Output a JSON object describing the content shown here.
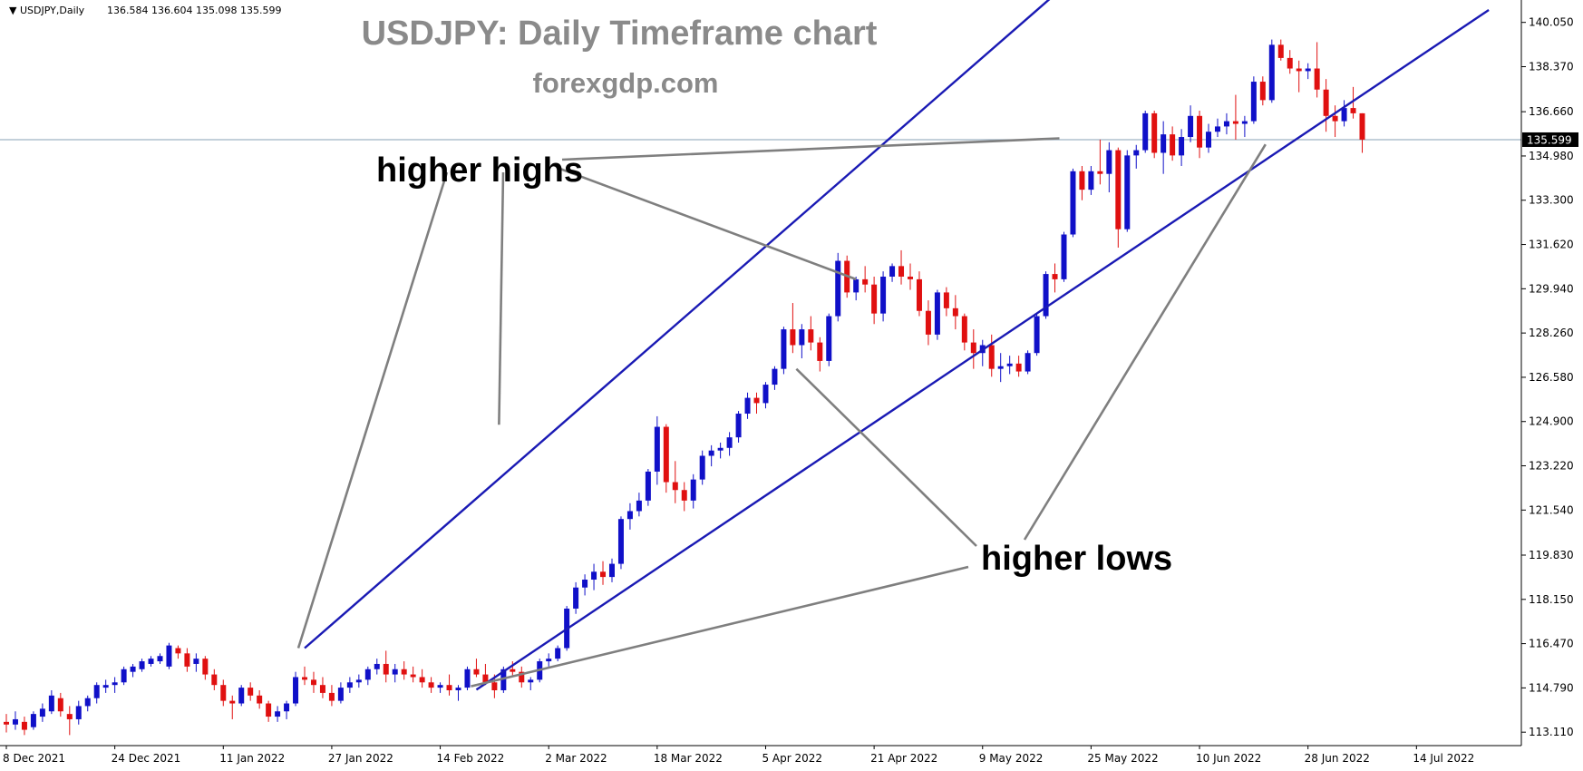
{
  "header": {
    "symbol": "USDJPY,Daily",
    "ohlc": "136.584 136.604 135.098 135.599"
  },
  "title": "USDJPY: Daily Timeframe chart",
  "subtitle": "forexgdp.com",
  "annotations": {
    "higher_highs": "higher highs",
    "higher_lows": "higher lows"
  },
  "colors": {
    "bull": "#1010c8",
    "bear": "#e01010",
    "channel": "#1a1ab4",
    "pointer": "#7f7f7f",
    "current_price_line": "#9fb3c4",
    "price_label_bg": "#000000"
  },
  "chart_data": {
    "type": "candlestick",
    "y_axis": {
      "ticks": [
        "140.050",
        "138.370",
        "136.660",
        "134.980",
        "133.300",
        "131.620",
        "129.940",
        "128.260",
        "126.580",
        "124.900",
        "123.220",
        "121.540",
        "119.830",
        "118.150",
        "116.470",
        "114.790",
        "113.110"
      ],
      "range": [
        112.6,
        140.9
      ]
    },
    "x_axis": {
      "ticks": [
        "8 Dec 2021",
        "24 Dec 2021",
        "11 Jan 2022",
        "27 Jan 2022",
        "14 Feb 2022",
        "2 Mar 2022",
        "18 Mar 2022",
        "5 Apr 2022",
        "21 Apr 2022",
        "9 May 2022",
        "25 May 2022",
        "10 Jun 2022",
        "28 Jun 2022",
        "14 Jul 2022"
      ],
      "tick_bar_index": [
        0,
        12,
        24,
        36,
        48,
        60,
        72,
        84,
        96,
        108,
        120,
        132,
        144,
        156
      ]
    },
    "current_price": 135.599,
    "candles": [
      {
        "o": 113.5,
        "h": 113.8,
        "l": 113.1,
        "c": 113.4
      },
      {
        "o": 113.4,
        "h": 113.9,
        "l": 113.2,
        "c": 113.6
      },
      {
        "o": 113.5,
        "h": 113.7,
        "l": 113.0,
        "c": 113.2
      },
      {
        "o": 113.3,
        "h": 113.9,
        "l": 113.2,
        "c": 113.8
      },
      {
        "o": 113.7,
        "h": 114.2,
        "l": 113.5,
        "c": 114.0
      },
      {
        "o": 113.9,
        "h": 114.7,
        "l": 113.8,
        "c": 114.5
      },
      {
        "o": 114.4,
        "h": 114.6,
        "l": 113.7,
        "c": 113.9
      },
      {
        "o": 113.8,
        "h": 114.1,
        "l": 113.0,
        "c": 113.6
      },
      {
        "o": 113.6,
        "h": 114.3,
        "l": 113.4,
        "c": 114.1
      },
      {
        "o": 114.1,
        "h": 114.5,
        "l": 113.9,
        "c": 114.4
      },
      {
        "o": 114.4,
        "h": 115.0,
        "l": 114.2,
        "c": 114.9
      },
      {
        "o": 114.8,
        "h": 115.1,
        "l": 114.6,
        "c": 114.9
      },
      {
        "o": 114.9,
        "h": 115.2,
        "l": 114.6,
        "c": 115.0
      },
      {
        "o": 115.0,
        "h": 115.6,
        "l": 114.9,
        "c": 115.5
      },
      {
        "o": 115.4,
        "h": 115.7,
        "l": 115.2,
        "c": 115.6
      },
      {
        "o": 115.5,
        "h": 115.9,
        "l": 115.4,
        "c": 115.8
      },
      {
        "o": 115.7,
        "h": 116.0,
        "l": 115.6,
        "c": 115.9
      },
      {
        "o": 115.8,
        "h": 116.1,
        "l": 115.7,
        "c": 116.0
      },
      {
        "o": 115.6,
        "h": 116.5,
        "l": 115.5,
        "c": 116.4
      },
      {
        "o": 116.3,
        "h": 116.4,
        "l": 115.9,
        "c": 116.1
      },
      {
        "o": 116.1,
        "h": 116.3,
        "l": 115.4,
        "c": 115.6
      },
      {
        "o": 115.7,
        "h": 116.1,
        "l": 115.4,
        "c": 115.9
      },
      {
        "o": 115.9,
        "h": 116.0,
        "l": 115.1,
        "c": 115.3
      },
      {
        "o": 115.3,
        "h": 115.5,
        "l": 114.7,
        "c": 114.9
      },
      {
        "o": 114.9,
        "h": 115.1,
        "l": 114.1,
        "c": 114.3
      },
      {
        "o": 114.3,
        "h": 114.5,
        "l": 113.6,
        "c": 114.2
      },
      {
        "o": 114.2,
        "h": 114.9,
        "l": 114.1,
        "c": 114.8
      },
      {
        "o": 114.8,
        "h": 115.0,
        "l": 114.3,
        "c": 114.5
      },
      {
        "o": 114.5,
        "h": 114.7,
        "l": 114.0,
        "c": 114.2
      },
      {
        "o": 114.2,
        "h": 114.3,
        "l": 113.5,
        "c": 113.7
      },
      {
        "o": 113.7,
        "h": 114.1,
        "l": 113.5,
        "c": 113.9
      },
      {
        "o": 113.9,
        "h": 114.3,
        "l": 113.6,
        "c": 114.2
      },
      {
        "o": 114.2,
        "h": 115.4,
        "l": 114.1,
        "c": 115.2
      },
      {
        "o": 115.2,
        "h": 115.6,
        "l": 114.9,
        "c": 115.1
      },
      {
        "o": 115.1,
        "h": 115.4,
        "l": 114.6,
        "c": 114.9
      },
      {
        "o": 114.9,
        "h": 115.2,
        "l": 114.4,
        "c": 114.6
      },
      {
        "o": 114.6,
        "h": 114.9,
        "l": 114.1,
        "c": 114.3
      },
      {
        "o": 114.3,
        "h": 115.0,
        "l": 114.2,
        "c": 114.8
      },
      {
        "o": 114.8,
        "h": 115.2,
        "l": 114.6,
        "c": 115.0
      },
      {
        "o": 115.0,
        "h": 115.3,
        "l": 114.8,
        "c": 115.1
      },
      {
        "o": 115.1,
        "h": 115.6,
        "l": 114.9,
        "c": 115.5
      },
      {
        "o": 115.5,
        "h": 115.9,
        "l": 115.3,
        "c": 115.7
      },
      {
        "o": 115.7,
        "h": 116.2,
        "l": 115.0,
        "c": 115.3
      },
      {
        "o": 115.3,
        "h": 115.7,
        "l": 115.0,
        "c": 115.5
      },
      {
        "o": 115.5,
        "h": 115.8,
        "l": 115.1,
        "c": 115.3
      },
      {
        "o": 115.3,
        "h": 115.6,
        "l": 115.0,
        "c": 115.2
      },
      {
        "o": 115.2,
        "h": 115.5,
        "l": 114.8,
        "c": 115.0
      },
      {
        "o": 115.0,
        "h": 115.2,
        "l": 114.6,
        "c": 114.8
      },
      {
        "o": 114.8,
        "h": 115.0,
        "l": 114.6,
        "c": 114.9
      },
      {
        "o": 114.9,
        "h": 115.3,
        "l": 114.5,
        "c": 114.7
      },
      {
        "o": 114.7,
        "h": 114.9,
        "l": 114.3,
        "c": 114.8
      },
      {
        "o": 114.8,
        "h": 115.6,
        "l": 114.7,
        "c": 115.5
      },
      {
        "o": 115.5,
        "h": 115.9,
        "l": 115.2,
        "c": 115.3
      },
      {
        "o": 115.3,
        "h": 115.7,
        "l": 114.9,
        "c": 115.0
      },
      {
        "o": 115.0,
        "h": 115.3,
        "l": 114.4,
        "c": 114.7
      },
      {
        "o": 114.7,
        "h": 115.6,
        "l": 114.6,
        "c": 115.5
      },
      {
        "o": 115.5,
        "h": 115.8,
        "l": 115.2,
        "c": 115.4
      },
      {
        "o": 115.4,
        "h": 115.6,
        "l": 114.8,
        "c": 115.0
      },
      {
        "o": 115.0,
        "h": 115.2,
        "l": 114.7,
        "c": 115.1
      },
      {
        "o": 115.1,
        "h": 115.9,
        "l": 115.0,
        "c": 115.8
      },
      {
        "o": 115.8,
        "h": 116.1,
        "l": 115.6,
        "c": 115.9
      },
      {
        "o": 115.9,
        "h": 116.4,
        "l": 115.8,
        "c": 116.3
      },
      {
        "o": 116.3,
        "h": 117.9,
        "l": 116.2,
        "c": 117.8
      },
      {
        "o": 117.8,
        "h": 118.8,
        "l": 117.6,
        "c": 118.6
      },
      {
        "o": 118.6,
        "h": 119.1,
        "l": 118.3,
        "c": 118.9
      },
      {
        "o": 118.9,
        "h": 119.5,
        "l": 118.5,
        "c": 119.2
      },
      {
        "o": 119.2,
        "h": 119.6,
        "l": 118.7,
        "c": 119.0
      },
      {
        "o": 119.0,
        "h": 119.7,
        "l": 118.8,
        "c": 119.5
      },
      {
        "o": 119.5,
        "h": 121.3,
        "l": 119.3,
        "c": 121.2
      },
      {
        "o": 121.2,
        "h": 121.8,
        "l": 120.8,
        "c": 121.5
      },
      {
        "o": 121.5,
        "h": 122.2,
        "l": 121.3,
        "c": 121.9
      },
      {
        "o": 121.9,
        "h": 123.1,
        "l": 121.7,
        "c": 123.0
      },
      {
        "o": 123.0,
        "h": 125.1,
        "l": 122.5,
        "c": 124.7
      },
      {
        "o": 124.7,
        "h": 124.8,
        "l": 122.2,
        "c": 122.6
      },
      {
        "o": 122.6,
        "h": 123.4,
        "l": 121.8,
        "c": 122.3
      },
      {
        "o": 122.3,
        "h": 122.6,
        "l": 121.5,
        "c": 121.9
      },
      {
        "o": 121.9,
        "h": 122.9,
        "l": 121.6,
        "c": 122.7
      },
      {
        "o": 122.7,
        "h": 123.8,
        "l": 122.5,
        "c": 123.6
      },
      {
        "o": 123.6,
        "h": 124.0,
        "l": 123.2,
        "c": 123.8
      },
      {
        "o": 123.8,
        "h": 124.1,
        "l": 123.5,
        "c": 123.9
      },
      {
        "o": 123.9,
        "h": 124.5,
        "l": 123.6,
        "c": 124.3
      },
      {
        "o": 124.3,
        "h": 125.3,
        "l": 124.1,
        "c": 125.2
      },
      {
        "o": 125.2,
        "h": 126.0,
        "l": 125.0,
        "c": 125.8
      },
      {
        "o": 125.8,
        "h": 126.0,
        "l": 125.2,
        "c": 125.6
      },
      {
        "o": 125.6,
        "h": 126.4,
        "l": 125.4,
        "c": 126.3
      },
      {
        "o": 126.3,
        "h": 127.0,
        "l": 126.1,
        "c": 126.9
      },
      {
        "o": 126.9,
        "h": 128.5,
        "l": 126.7,
        "c": 128.4
      },
      {
        "o": 128.4,
        "h": 129.4,
        "l": 127.5,
        "c": 127.8
      },
      {
        "o": 127.8,
        "h": 128.6,
        "l": 127.3,
        "c": 128.4
      },
      {
        "o": 128.4,
        "h": 128.9,
        "l": 127.6,
        "c": 127.9
      },
      {
        "o": 127.9,
        "h": 128.1,
        "l": 126.8,
        "c": 127.2
      },
      {
        "o": 127.2,
        "h": 129.0,
        "l": 127.0,
        "c": 128.9
      },
      {
        "o": 128.9,
        "h": 131.3,
        "l": 128.7,
        "c": 131.0
      },
      {
        "o": 131.0,
        "h": 131.2,
        "l": 129.6,
        "c": 129.8
      },
      {
        "o": 129.8,
        "h": 130.4,
        "l": 129.5,
        "c": 130.3
      },
      {
        "o": 130.3,
        "h": 130.8,
        "l": 129.8,
        "c": 130.1
      },
      {
        "o": 130.1,
        "h": 130.4,
        "l": 128.6,
        "c": 129.0
      },
      {
        "o": 129.0,
        "h": 130.6,
        "l": 128.7,
        "c": 130.4
      },
      {
        "o": 130.4,
        "h": 130.9,
        "l": 130.2,
        "c": 130.8
      },
      {
        "o": 130.8,
        "h": 131.4,
        "l": 130.1,
        "c": 130.4
      },
      {
        "o": 130.4,
        "h": 130.9,
        "l": 129.9,
        "c": 130.3
      },
      {
        "o": 130.3,
        "h": 130.6,
        "l": 128.9,
        "c": 129.1
      },
      {
        "o": 129.1,
        "h": 129.5,
        "l": 127.8,
        "c": 128.2
      },
      {
        "o": 128.2,
        "h": 129.9,
        "l": 128.0,
        "c": 129.8
      },
      {
        "o": 129.8,
        "h": 130.0,
        "l": 128.9,
        "c": 129.2
      },
      {
        "o": 129.2,
        "h": 129.7,
        "l": 128.4,
        "c": 128.9
      },
      {
        "o": 128.9,
        "h": 129.0,
        "l": 127.6,
        "c": 127.9
      },
      {
        "o": 127.9,
        "h": 128.4,
        "l": 126.9,
        "c": 127.5
      },
      {
        "o": 127.5,
        "h": 128.0,
        "l": 127.0,
        "c": 127.8
      },
      {
        "o": 127.8,
        "h": 128.2,
        "l": 126.6,
        "c": 126.9
      },
      {
        "o": 126.9,
        "h": 127.5,
        "l": 126.4,
        "c": 127.0
      },
      {
        "o": 127.0,
        "h": 127.4,
        "l": 126.7,
        "c": 127.1
      },
      {
        "o": 127.1,
        "h": 127.4,
        "l": 126.6,
        "c": 126.8
      },
      {
        "o": 126.8,
        "h": 127.6,
        "l": 126.7,
        "c": 127.5
      },
      {
        "o": 127.5,
        "h": 129.0,
        "l": 127.4,
        "c": 128.9
      },
      {
        "o": 128.9,
        "h": 130.6,
        "l": 128.8,
        "c": 130.5
      },
      {
        "o": 130.5,
        "h": 130.9,
        "l": 129.8,
        "c": 130.3
      },
      {
        "o": 130.3,
        "h": 132.1,
        "l": 130.2,
        "c": 132.0
      },
      {
        "o": 132.0,
        "h": 134.5,
        "l": 131.9,
        "c": 134.4
      },
      {
        "o": 134.4,
        "h": 134.6,
        "l": 133.3,
        "c": 133.7
      },
      {
        "o": 133.7,
        "h": 134.6,
        "l": 133.5,
        "c": 134.4
      },
      {
        "o": 134.4,
        "h": 135.6,
        "l": 133.9,
        "c": 134.3
      },
      {
        "o": 134.3,
        "h": 135.5,
        "l": 133.6,
        "c": 135.2
      },
      {
        "o": 135.2,
        "h": 135.3,
        "l": 131.5,
        "c": 132.2
      },
      {
        "o": 132.2,
        "h": 135.2,
        "l": 132.1,
        "c": 135.0
      },
      {
        "o": 135.0,
        "h": 135.4,
        "l": 134.5,
        "c": 135.2
      },
      {
        "o": 135.2,
        "h": 136.7,
        "l": 135.1,
        "c": 136.6
      },
      {
        "o": 136.6,
        "h": 136.7,
        "l": 134.9,
        "c": 135.1
      },
      {
        "o": 135.1,
        "h": 136.3,
        "l": 134.3,
        "c": 135.8
      },
      {
        "o": 135.8,
        "h": 136.1,
        "l": 134.8,
        "c": 135.0
      },
      {
        "o": 135.0,
        "h": 136.0,
        "l": 134.6,
        "c": 135.7
      },
      {
        "o": 135.7,
        "h": 136.9,
        "l": 135.5,
        "c": 136.5
      },
      {
        "o": 136.5,
        "h": 136.7,
        "l": 134.9,
        "c": 135.3
      },
      {
        "o": 135.3,
        "h": 136.2,
        "l": 135.1,
        "c": 135.9
      },
      {
        "o": 135.9,
        "h": 136.4,
        "l": 135.7,
        "c": 136.1
      },
      {
        "o": 136.1,
        "h": 136.6,
        "l": 135.8,
        "c": 136.3
      },
      {
        "o": 136.3,
        "h": 137.3,
        "l": 135.6,
        "c": 136.2
      },
      {
        "o": 136.2,
        "h": 136.5,
        "l": 135.7,
        "c": 136.3
      },
      {
        "o": 136.3,
        "h": 138.0,
        "l": 136.2,
        "c": 137.8
      },
      {
        "o": 137.8,
        "h": 138.0,
        "l": 136.9,
        "c": 137.1
      },
      {
        "o": 137.1,
        "h": 139.4,
        "l": 137.0,
        "c": 139.2
      },
      {
        "o": 139.2,
        "h": 139.4,
        "l": 138.6,
        "c": 138.7
      },
      {
        "o": 138.7,
        "h": 139.0,
        "l": 138.1,
        "c": 138.3
      },
      {
        "o": 138.3,
        "h": 138.6,
        "l": 137.4,
        "c": 138.2
      },
      {
        "o": 138.2,
        "h": 138.5,
        "l": 137.9,
        "c": 138.3
      },
      {
        "o": 138.3,
        "h": 139.3,
        "l": 137.2,
        "c": 137.5
      },
      {
        "o": 137.5,
        "h": 137.9,
        "l": 135.9,
        "c": 136.5
      },
      {
        "o": 136.5,
        "h": 136.9,
        "l": 135.7,
        "c": 136.3
      },
      {
        "o": 136.3,
        "h": 137.1,
        "l": 136.1,
        "c": 136.8
      },
      {
        "o": 136.8,
        "h": 137.6,
        "l": 136.4,
        "c": 136.6
      },
      {
        "o": 136.6,
        "h": 136.6,
        "l": 135.1,
        "c": 135.6
      }
    ]
  }
}
